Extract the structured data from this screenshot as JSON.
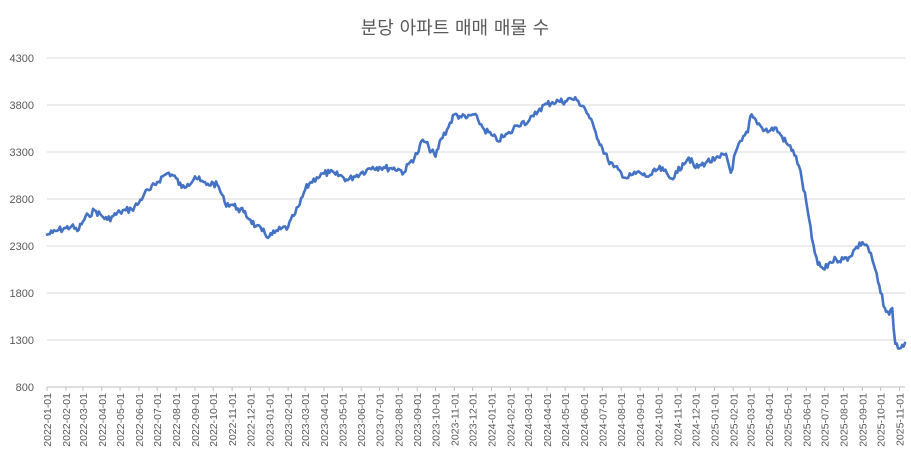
{
  "chart_data": {
    "type": "line",
    "title": "분당 아파트 매매 매물 수",
    "xlabel": "",
    "ylabel": "",
    "x_range": [
      "2022-01-01",
      "2025-11-10"
    ],
    "ylim": [
      800,
      4300
    ],
    "yticks": [
      800,
      1300,
      1800,
      2300,
      2800,
      3300,
      3800,
      4300
    ],
    "xticks": [
      "2022-01-01",
      "2022-02-01",
      "2022-03-01",
      "2022-04-01",
      "2022-05-01",
      "2022-06-01",
      "2022-07-01",
      "2022-08-01",
      "2022-09-01",
      "2022-10-01",
      "2022-11-01",
      "2022-12-01",
      "2023-01-01",
      "2023-02-01",
      "2023-03-01",
      "2023-04-01",
      "2023-05-01",
      "2023-06-01",
      "2023-07-01",
      "2023-08-01",
      "2023-09-01",
      "2023-10-01",
      "2023-11-01",
      "2023-12-01",
      "2024-01-01",
      "2024-02-01",
      "2024-03-01",
      "2024-04-01",
      "2024-05-01",
      "2024-06-01",
      "2024-07-01",
      "2024-08-01",
      "2024-09-01",
      "2024-10-01",
      "2024-11-01",
      "2024-12-01",
      "2025-01-01",
      "2025-02-01",
      "2025-03-01",
      "2025-04-01",
      "2025-05-01",
      "2025-06-01",
      "2025-07-01",
      "2025-08-01",
      "2025-09-01",
      "2025-10-01",
      "2025-11-01"
    ],
    "grid": true,
    "legend": "none",
    "series": [
      {
        "color": "#4472C4",
        "points": [
          [
            "2022-01-01",
            2420
          ],
          [
            "2022-01-10",
            2440
          ],
          [
            "2022-01-20",
            2470
          ],
          [
            "2022-02-01",
            2490
          ],
          [
            "2022-02-10",
            2510
          ],
          [
            "2022-02-20",
            2460
          ],
          [
            "2022-03-01",
            2560
          ],
          [
            "2022-03-10",
            2630
          ],
          [
            "2022-03-20",
            2680
          ],
          [
            "2022-04-01",
            2620
          ],
          [
            "2022-04-10",
            2580
          ],
          [
            "2022-04-20",
            2620
          ],
          [
            "2022-05-01",
            2660
          ],
          [
            "2022-05-10",
            2680
          ],
          [
            "2022-05-20",
            2690
          ],
          [
            "2022-06-01",
            2760
          ],
          [
            "2022-06-10",
            2860
          ],
          [
            "2022-06-20",
            2900
          ],
          [
            "2022-07-01",
            2980
          ],
          [
            "2022-07-10",
            3040
          ],
          [
            "2022-07-20",
            3080
          ],
          [
            "2022-08-01",
            3020
          ],
          [
            "2022-08-10",
            2920
          ],
          [
            "2022-08-20",
            2960
          ],
          [
            "2022-09-01",
            3040
          ],
          [
            "2022-09-10",
            2990
          ],
          [
            "2022-09-20",
            2950
          ],
          [
            "2022-10-01",
            2970
          ],
          [
            "2022-10-10",
            2930
          ],
          [
            "2022-10-20",
            2760
          ],
          [
            "2022-11-01",
            2740
          ],
          [
            "2022-11-10",
            2700
          ],
          [
            "2022-11-20",
            2660
          ],
          [
            "2022-12-01",
            2580
          ],
          [
            "2022-12-10",
            2510
          ],
          [
            "2022-12-20",
            2460
          ],
          [
            "2023-01-01",
            2400
          ],
          [
            "2023-01-10",
            2440
          ],
          [
            "2023-01-20",
            2480
          ],
          [
            "2023-02-01",
            2500
          ],
          [
            "2023-02-10",
            2620
          ],
          [
            "2023-02-20",
            2740
          ],
          [
            "2023-03-01",
            2900
          ],
          [
            "2023-03-10",
            2980
          ],
          [
            "2023-03-20",
            3030
          ],
          [
            "2023-04-01",
            3070
          ],
          [
            "2023-04-10",
            3080
          ],
          [
            "2023-04-20",
            3060
          ],
          [
            "2023-05-01",
            3040
          ],
          [
            "2023-05-10",
            3000
          ],
          [
            "2023-05-20",
            3040
          ],
          [
            "2023-06-01",
            3080
          ],
          [
            "2023-06-10",
            3110
          ],
          [
            "2023-06-20",
            3140
          ],
          [
            "2023-07-01",
            3140
          ],
          [
            "2023-07-10",
            3130
          ],
          [
            "2023-07-20",
            3130
          ],
          [
            "2023-08-01",
            3120
          ],
          [
            "2023-08-10",
            3080
          ],
          [
            "2023-08-20",
            3190
          ],
          [
            "2023-09-01",
            3280
          ],
          [
            "2023-09-10",
            3430
          ],
          [
            "2023-09-20",
            3350
          ],
          [
            "2023-10-01",
            3250
          ],
          [
            "2023-10-10",
            3440
          ],
          [
            "2023-10-20",
            3540
          ],
          [
            "2023-11-01",
            3700
          ],
          [
            "2023-11-10",
            3680
          ],
          [
            "2023-11-20",
            3660
          ],
          [
            "2023-12-01",
            3700
          ],
          [
            "2023-12-10",
            3640
          ],
          [
            "2023-12-20",
            3540
          ],
          [
            "2024-01-01",
            3480
          ],
          [
            "2024-01-10",
            3420
          ],
          [
            "2024-01-20",
            3460
          ],
          [
            "2024-02-01",
            3500
          ],
          [
            "2024-02-10",
            3580
          ],
          [
            "2024-02-20",
            3620
          ],
          [
            "2024-03-01",
            3620
          ],
          [
            "2024-03-10",
            3680
          ],
          [
            "2024-03-20",
            3760
          ],
          [
            "2024-04-01",
            3810
          ],
          [
            "2024-04-10",
            3830
          ],
          [
            "2024-04-20",
            3840
          ],
          [
            "2024-05-01",
            3840
          ],
          [
            "2024-05-10",
            3870
          ],
          [
            "2024-05-20",
            3850
          ],
          [
            "2024-06-01",
            3780
          ],
          [
            "2024-06-10",
            3660
          ],
          [
            "2024-06-20",
            3510
          ],
          [
            "2024-07-01",
            3340
          ],
          [
            "2024-07-10",
            3220
          ],
          [
            "2024-07-20",
            3140
          ],
          [
            "2024-08-01",
            3080
          ],
          [
            "2024-08-10",
            3020
          ],
          [
            "2024-08-20",
            3060
          ],
          [
            "2024-09-01",
            3080
          ],
          [
            "2024-09-10",
            3040
          ],
          [
            "2024-09-20",
            3060
          ],
          [
            "2024-10-01",
            3120
          ],
          [
            "2024-10-10",
            3100
          ],
          [
            "2024-10-20",
            3020
          ],
          [
            "2024-11-01",
            3080
          ],
          [
            "2024-11-10",
            3180
          ],
          [
            "2024-11-20",
            3240
          ],
          [
            "2024-12-01",
            3130
          ],
          [
            "2024-12-10",
            3160
          ],
          [
            "2024-12-20",
            3200
          ],
          [
            "2025-01-01",
            3210
          ],
          [
            "2025-01-10",
            3240
          ],
          [
            "2025-01-20",
            3280
          ],
          [
            "2025-01-28",
            3080
          ],
          [
            "2025-02-05",
            3300
          ],
          [
            "2025-02-15",
            3420
          ],
          [
            "2025-02-25",
            3510
          ],
          [
            "2025-03-01",
            3680
          ],
          [
            "2025-03-10",
            3640
          ],
          [
            "2025-03-20",
            3560
          ],
          [
            "2025-04-01",
            3520
          ],
          [
            "2025-04-10",
            3560
          ],
          [
            "2025-04-20",
            3480
          ],
          [
            "2025-05-01",
            3380
          ],
          [
            "2025-05-10",
            3320
          ],
          [
            "2025-05-20",
            3150
          ],
          [
            "2025-06-01",
            2760
          ],
          [
            "2025-06-10",
            2380
          ],
          [
            "2025-06-20",
            2100
          ],
          [
            "2025-07-01",
            2050
          ],
          [
            "2025-07-10",
            2130
          ],
          [
            "2025-07-20",
            2160
          ],
          [
            "2025-08-01",
            2160
          ],
          [
            "2025-08-10",
            2180
          ],
          [
            "2025-08-20",
            2270
          ],
          [
            "2025-09-01",
            2340
          ],
          [
            "2025-09-10",
            2290
          ],
          [
            "2025-09-20",
            2100
          ],
          [
            "2025-10-01",
            1800
          ],
          [
            "2025-10-10",
            1600
          ],
          [
            "2025-10-15",
            1570
          ],
          [
            "2025-10-20",
            1640
          ],
          [
            "2025-10-25",
            1260
          ],
          [
            "2025-11-01",
            1210
          ],
          [
            "2025-11-10",
            1270
          ]
        ]
      }
    ]
  }
}
